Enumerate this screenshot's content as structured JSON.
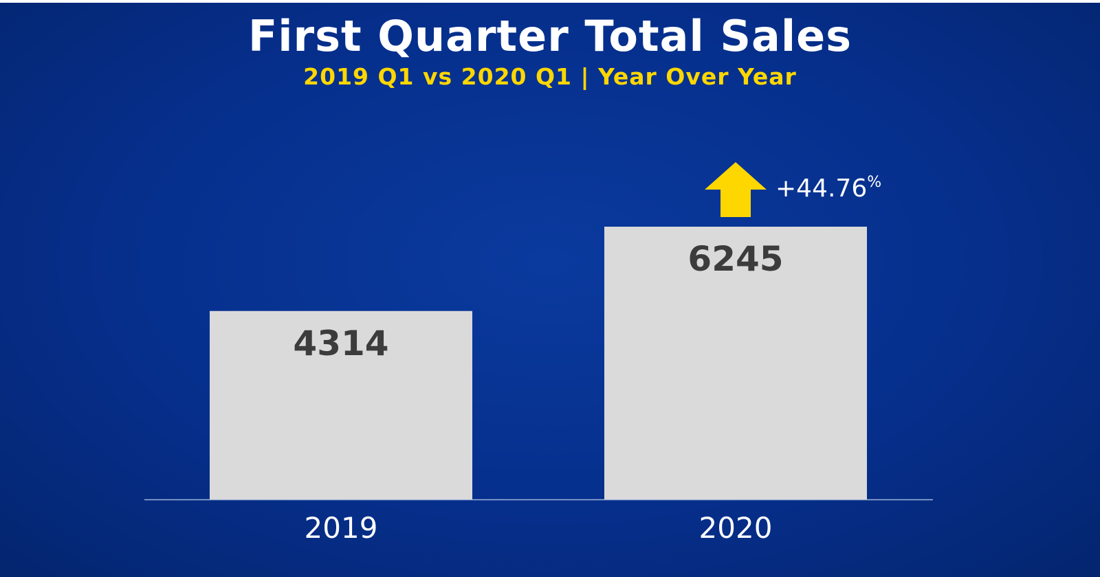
{
  "title": "First Quarter Total Sales",
  "subtitle": "2019 Q1 vs 2020 Q1 | Year Over Year",
  "colors": {
    "background": "#062f8c",
    "bar": "#dadada",
    "bar_label": "#3c3c3c",
    "accent": "#ffd700",
    "text": "#ffffff"
  },
  "chart_data": {
    "type": "bar",
    "title": "First Quarter Total Sales",
    "subtitle": "2019 Q1 vs 2020 Q1 | Year Over Year",
    "categories": [
      "2019",
      "2020"
    ],
    "values": [
      4314,
      6245
    ],
    "data_labels": [
      "4314",
      "6245"
    ],
    "ylim": [
      0,
      7000
    ],
    "grid": false,
    "annotation": {
      "text": "+44.76",
      "suffix": "%",
      "icon": "up-arrow-icon",
      "category": "2020"
    }
  }
}
